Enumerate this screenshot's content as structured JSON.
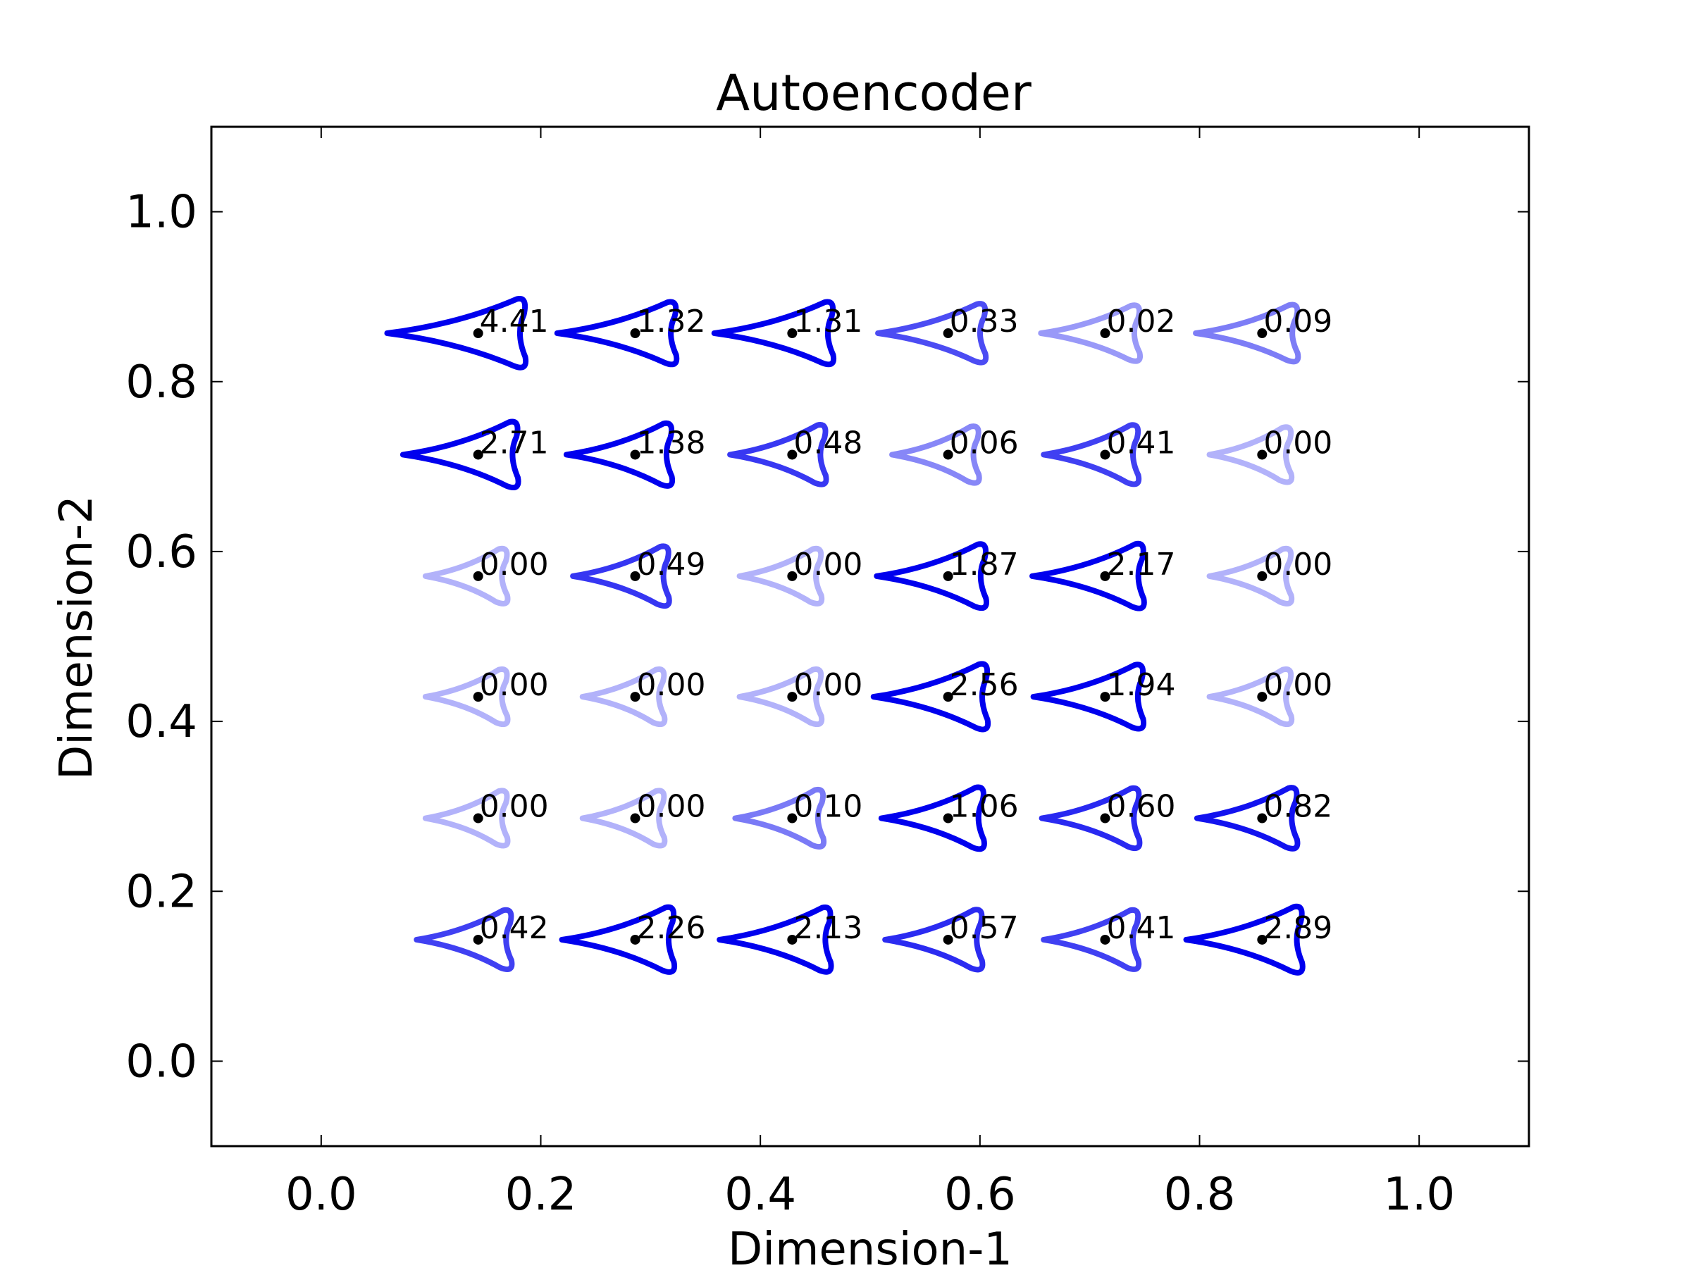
{
  "chart_data": {
    "type": "scatter",
    "title": "Autoencoder",
    "xlabel": "Dimension-1",
    "ylabel": "Dimension-2",
    "xlim": [
      -0.1,
      1.1
    ],
    "ylim": [
      -0.1,
      1.1
    ],
    "xticks": [
      "0.0",
      "0.2",
      "0.4",
      "0.6",
      "0.8",
      "1.0"
    ],
    "yticks": [
      "0.0",
      "0.2",
      "0.4",
      "0.6",
      "0.8",
      "1.0"
    ],
    "grid": false,
    "marker_color": "#0000ee",
    "point_color": "#000000",
    "x": [
      0.143,
      0.286,
      0.429,
      0.571,
      0.714,
      0.857
    ],
    "y": [
      0.857,
      0.714,
      0.571,
      0.429,
      0.286,
      0.143
    ],
    "points": [
      {
        "x": 0.143,
        "y": 0.857,
        "label": "4.41"
      },
      {
        "x": 0.286,
        "y": 0.857,
        "label": "1.32"
      },
      {
        "x": 0.429,
        "y": 0.857,
        "label": "1.31"
      },
      {
        "x": 0.571,
        "y": 0.857,
        "label": "0.33"
      },
      {
        "x": 0.714,
        "y": 0.857,
        "label": "0.02"
      },
      {
        "x": 0.857,
        "y": 0.857,
        "label": "0.09"
      },
      {
        "x": 0.143,
        "y": 0.714,
        "label": "2.71"
      },
      {
        "x": 0.286,
        "y": 0.714,
        "label": "1.38"
      },
      {
        "x": 0.429,
        "y": 0.714,
        "label": "0.48"
      },
      {
        "x": 0.571,
        "y": 0.714,
        "label": "0.06"
      },
      {
        "x": 0.714,
        "y": 0.714,
        "label": "0.41"
      },
      {
        "x": 0.857,
        "y": 0.714,
        "label": "0.00"
      },
      {
        "x": 0.143,
        "y": 0.571,
        "label": "0.00"
      },
      {
        "x": 0.286,
        "y": 0.571,
        "label": "0.49"
      },
      {
        "x": 0.429,
        "y": 0.571,
        "label": "0.00"
      },
      {
        "x": 0.571,
        "y": 0.571,
        "label": "1.87"
      },
      {
        "x": 0.714,
        "y": 0.571,
        "label": "2.17"
      },
      {
        "x": 0.857,
        "y": 0.571,
        "label": "0.00"
      },
      {
        "x": 0.143,
        "y": 0.429,
        "label": "0.00"
      },
      {
        "x": 0.286,
        "y": 0.429,
        "label": "0.00"
      },
      {
        "x": 0.429,
        "y": 0.429,
        "label": "0.00"
      },
      {
        "x": 0.571,
        "y": 0.429,
        "label": "2.56"
      },
      {
        "x": 0.714,
        "y": 0.429,
        "label": "1.94"
      },
      {
        "x": 0.857,
        "y": 0.429,
        "label": "0.00"
      },
      {
        "x": 0.143,
        "y": 0.286,
        "label": "0.00"
      },
      {
        "x": 0.286,
        "y": 0.286,
        "label": "0.00"
      },
      {
        "x": 0.429,
        "y": 0.286,
        "label": "0.10"
      },
      {
        "x": 0.571,
        "y": 0.286,
        "label": "1.06"
      },
      {
        "x": 0.714,
        "y": 0.286,
        "label": "0.60"
      },
      {
        "x": 0.857,
        "y": 0.286,
        "label": "0.82"
      },
      {
        "x": 0.143,
        "y": 0.143,
        "label": "0.42"
      },
      {
        "x": 0.286,
        "y": 0.143,
        "label": "2.26"
      },
      {
        "x": 0.429,
        "y": 0.143,
        "label": "2.13"
      },
      {
        "x": 0.571,
        "y": 0.143,
        "label": "0.57"
      },
      {
        "x": 0.714,
        "y": 0.143,
        "label": "0.41"
      },
      {
        "x": 0.857,
        "y": 0.143,
        "label": "2.89"
      }
    ]
  }
}
